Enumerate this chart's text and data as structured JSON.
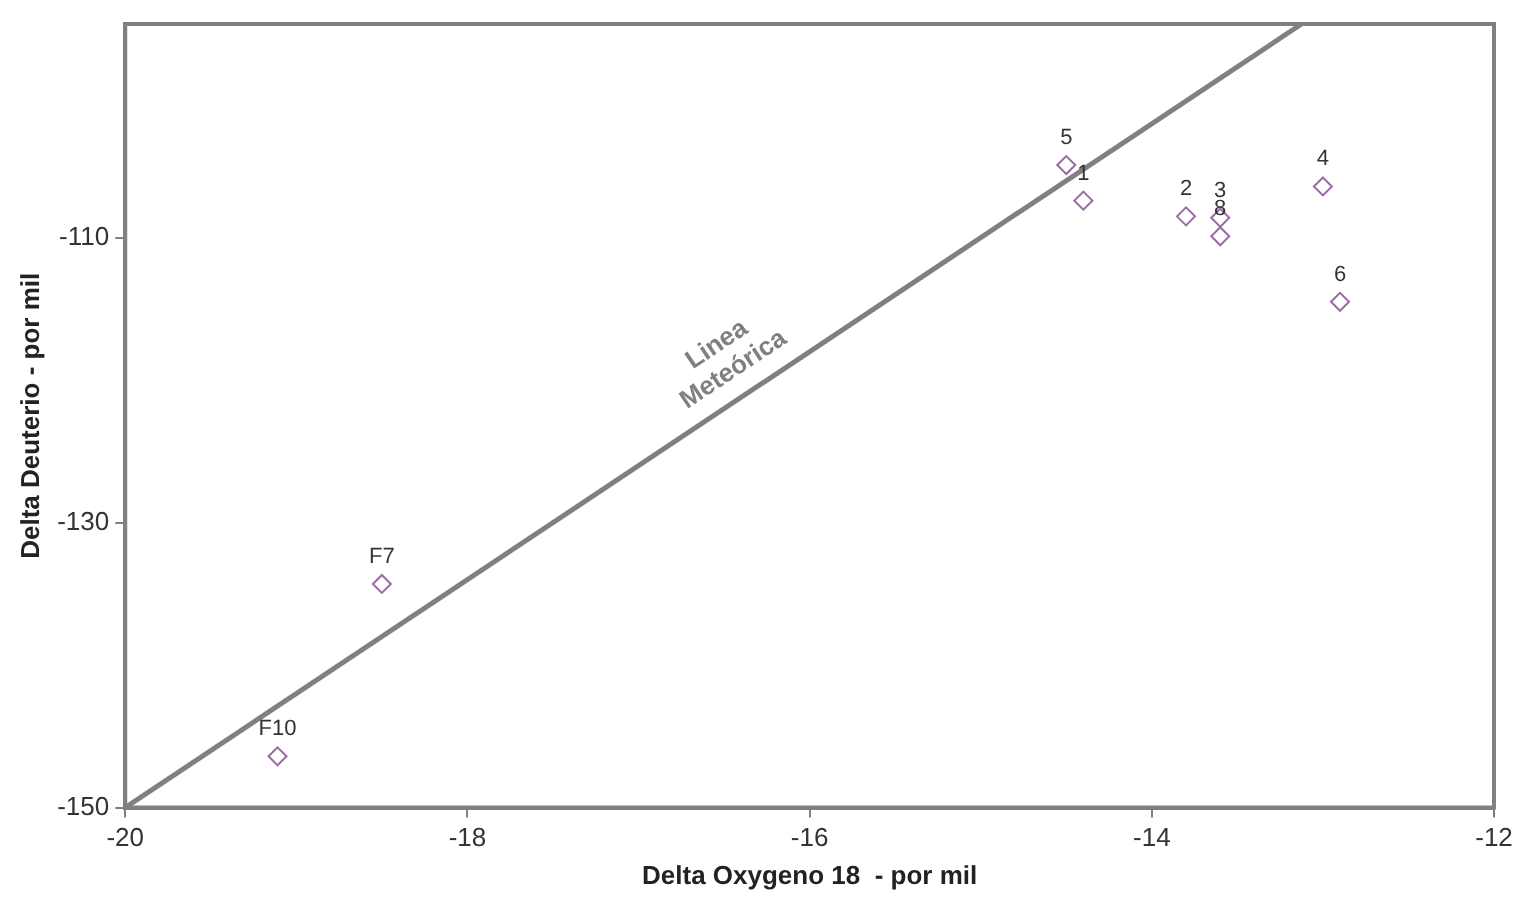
{
  "chart_data": {
    "type": "scatter",
    "xlabel": "Delta Oxygeno 18  - por mil",
    "ylabel": "Delta Deuterio - por mil",
    "xlim": [
      -20,
      -12
    ],
    "xticks": [
      -20,
      -18,
      -16,
      -14,
      -12
    ],
    "ylim": [
      -150,
      -95
    ],
    "yticks": [
      -150,
      -130,
      -110
    ],
    "grid": false,
    "legend": false,
    "marker": "diamond",
    "series": [
      {
        "color": "#9b6aa6",
        "x": [
          -14.4,
          -13.8,
          -13.6,
          -13.0,
          -14.5,
          -12.9,
          -18.5,
          -13.6,
          -19.11
        ],
        "values": [
          -107.4,
          -108.5,
          -108.6,
          -106.4,
          -104.9,
          -114.5,
          -134.3,
          -109.9,
          -146.4
        ]
      },
      {
        "type": "line",
        "name": "Linea Meteórica",
        "color": "#808080",
        "marker": "none",
        "line_style": "solid",
        "x": [
          -20,
          -13.125
        ],
        "values": [
          -150,
          -95
        ]
      }
    ],
    "annotations": [
      {
        "text": "1",
        "x": -14.4,
        "y": -107.4
      },
      {
        "text": "2",
        "x": -13.8,
        "y": -108.5
      },
      {
        "text": "3",
        "x": -13.6,
        "y": -108.6
      },
      {
        "text": "4",
        "x": -13.0,
        "y": -106.4
      },
      {
        "text": "5",
        "x": -14.5,
        "y": -104.9
      },
      {
        "text": "6",
        "x": -12.9,
        "y": -114.5
      },
      {
        "text": "F7",
        "x": -18.5,
        "y": -134.3
      },
      {
        "text": "8",
        "x": -13.6,
        "y": -109.9
      },
      {
        "text": "F10",
        "x": -19.11,
        "y": -146.4
      }
    ]
  }
}
